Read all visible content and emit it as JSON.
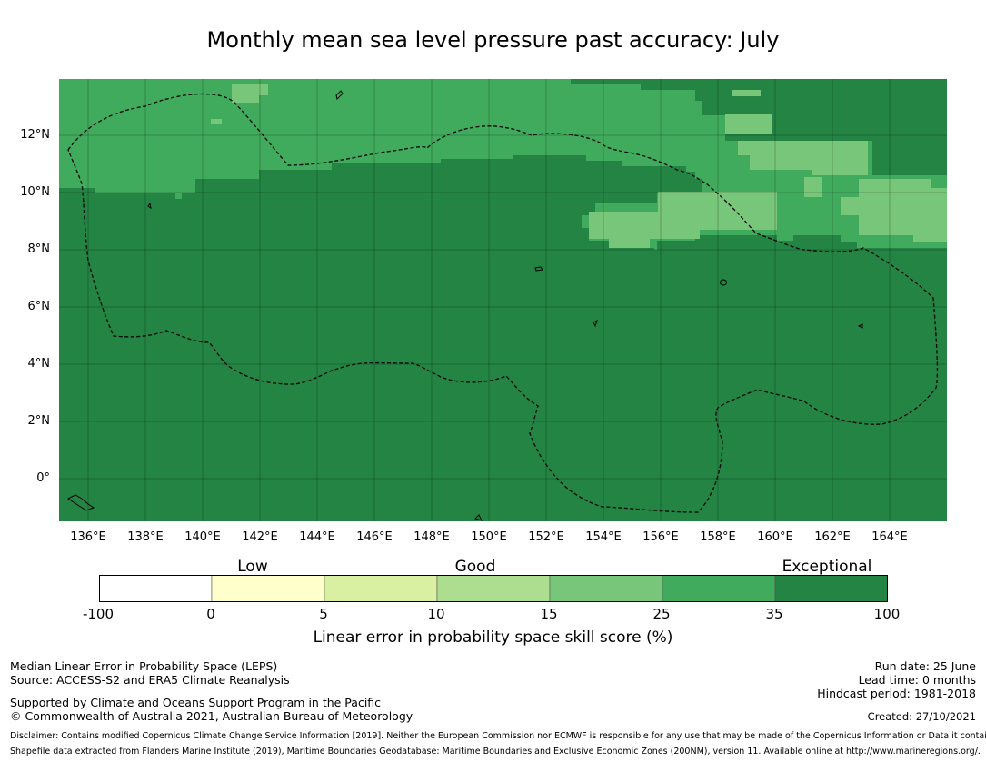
{
  "title": "Monthly mean sea level pressure past accuracy: July",
  "map": {
    "y_ticks": [
      "12°N",
      "10°N",
      "8°N",
      "6°N",
      "4°N",
      "2°N",
      "0°"
    ],
    "x_ticks": [
      "136°E",
      "138°E",
      "140°E",
      "142°E",
      "144°E",
      "146°E",
      "148°E",
      "150°E",
      "152°E",
      "154°E",
      "156°E",
      "158°E",
      "160°E",
      "162°E",
      "164°E"
    ],
    "colors": {
      "exceptional": "#238443",
      "very_good": "#41ab5d",
      "good": "#78c679",
      "fair": "#addd8e"
    }
  },
  "legend": {
    "categories": [
      "Low",
      "Good",
      "Exceptional"
    ],
    "tick_labels": [
      "-100",
      "0",
      "5",
      "10",
      "15",
      "25",
      "35",
      "100"
    ],
    "colors": [
      "#ffffff",
      "#ffffcc",
      "#d9f0a3",
      "#addd8e",
      "#78c679",
      "#41ab5d",
      "#238443"
    ],
    "title": "Linear error in probability space skill score (%)"
  },
  "footer": {
    "left": {
      "line1": "Median Linear Error in Probability Space (LEPS)",
      "line2": "Source: ACCESS-S2 and ERA5 Climate Reanalysis",
      "line3": "Supported by Climate and Oceans Support Program in the Pacific",
      "line4": "© Commonwealth of Australia 2021, Australian Bureau of Meteorology"
    },
    "right": {
      "run_date": "Run date: 25 June",
      "lead_time": "Lead time: 0 months",
      "hindcast": "Hindcast period: 1981-2018",
      "created": "Created: 27/10/2021"
    },
    "disclaimer": "Disclaimer: Contains modified Copernicus Climate Change Service Information [2019]. Neither the European Commission nor ECMWF is responsible for any use that may be made of the Copernicus Information or Data it contains.",
    "shapefile": "Shapefile data extracted from Flanders Marine Institute (2019), Maritime Boundaries Geodatabase: Maritime Boundaries and Exclusive Economic Zones (200NM), version 11. Available online at http://www.marineregions.org/."
  }
}
